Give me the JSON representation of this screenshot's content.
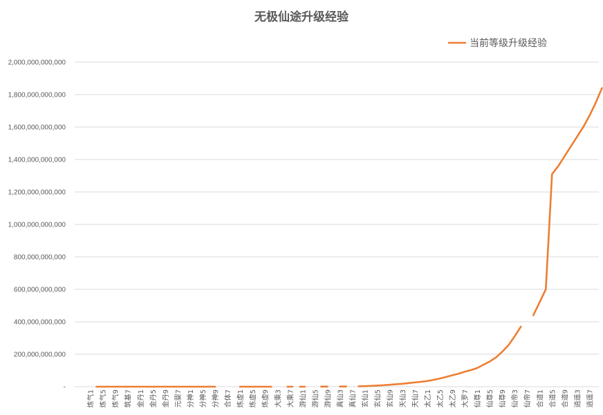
{
  "chart_data": {
    "type": "line",
    "title": "无极仙途升级经验",
    "xlabel": "",
    "ylabel": "",
    "ylim": [
      0,
      2000000000000
    ],
    "y_ticks": [
      {
        "value": 0,
        "label": "-"
      },
      {
        "value": 200000000000,
        "label": "200,000,000,000"
      },
      {
        "value": 400000000000,
        "label": "400,000,000,000"
      },
      {
        "value": 600000000000,
        "label": "600,000,000,000"
      },
      {
        "value": 800000000000,
        "label": "800,000,000,000"
      },
      {
        "value": 1000000000000,
        "label": "1,000,000,000,000"
      },
      {
        "value": 1200000000000,
        "label": "1,200,000,000,000"
      },
      {
        "value": 1400000000000,
        "label": "1,400,000,000,000"
      },
      {
        "value": 1600000000000,
        "label": "1,600,000,000,000"
      },
      {
        "value": 1800000000000,
        "label": "1,800,000,000,000"
      },
      {
        "value": 2000000000000,
        "label": "2,000,000,000,000"
      }
    ],
    "grid": true,
    "legend_position": "top-right",
    "x_tick_labels": [
      "炼气1",
      "炼气5",
      "炼气9",
      "筑基7",
      "金丹1",
      "金丹5",
      "金丹9",
      "元婴7",
      "分神1",
      "分神5",
      "分神9",
      "合体7",
      "炼虚1",
      "炼虚5",
      "炼虚9",
      "大乘3",
      "大乘7",
      "游仙1",
      "游仙5",
      "游仙9",
      "真仙3",
      "真仙7",
      "玄仙1",
      "玄仙5",
      "玄仙9",
      "天仙3",
      "天仙7",
      "太乙1",
      "太乙5",
      "太乙9",
      "大罗7",
      "仙尊1",
      "仙尊5",
      "仙尊9",
      "仙帝3",
      "仙帝7",
      "合道1",
      "合道5",
      "合道9",
      "逍遥3",
      "逍遥7"
    ],
    "x_tick_positions": [
      2,
      4,
      6,
      8,
      10,
      12,
      14,
      16,
      18,
      20,
      22,
      24,
      26,
      28,
      30,
      32,
      34,
      36,
      38,
      40,
      42,
      44,
      46,
      48,
      50,
      52,
      54,
      56,
      58,
      60,
      62,
      64,
      66,
      68,
      70,
      72,
      74,
      76,
      78,
      80,
      82
    ],
    "x_count": 84,
    "series": [
      {
        "name": "当前等级升级经验",
        "color": "#ed7d31",
        "segments": [
          {
            "start": 3,
            "values": [
              0,
              0,
              0,
              0,
              0,
              0,
              0,
              0,
              0,
              0,
              0,
              0,
              0,
              0,
              0,
              0,
              0,
              0,
              0,
              0
            ]
          },
          {
            "start": 26,
            "values": [
              0,
              0,
              0,
              0,
              0,
              0
            ]
          },
          {
            "start": 34,
            "values": [
              0
            ]
          },
          {
            "start": 36,
            "values": [
              0
            ]
          },
          {
            "start": 39,
            "values": [
              300000000,
              600000000
            ]
          },
          {
            "start": 42,
            "values": [
              1000000000,
              1500000000
            ]
          },
          {
            "start": 45,
            "values": [
              2200000000,
              3500000000,
              5000000000,
              7000000000,
              9000000000,
              12000000000,
              15000000000,
              18000000000,
              22000000000,
              26000000000,
              30000000000,
              35000000000,
              42000000000,
              50000000000,
              60000000000,
              70000000000,
              80000000000,
              92000000000,
              102000000000,
              115000000000,
              135000000000,
              155000000000,
              180000000000,
              215000000000,
              255000000000,
              310000000000,
              370000000000
            ]
          },
          {
            "start": 73,
            "values": [
              440000000000,
              520000000000,
              600000000000,
              1310000000000,
              1360000000000,
              1420000000000,
              1480000000000,
              1540000000000,
              1600000000000,
              1670000000000,
              1750000000000,
              1840000000000
            ]
          }
        ]
      }
    ]
  }
}
